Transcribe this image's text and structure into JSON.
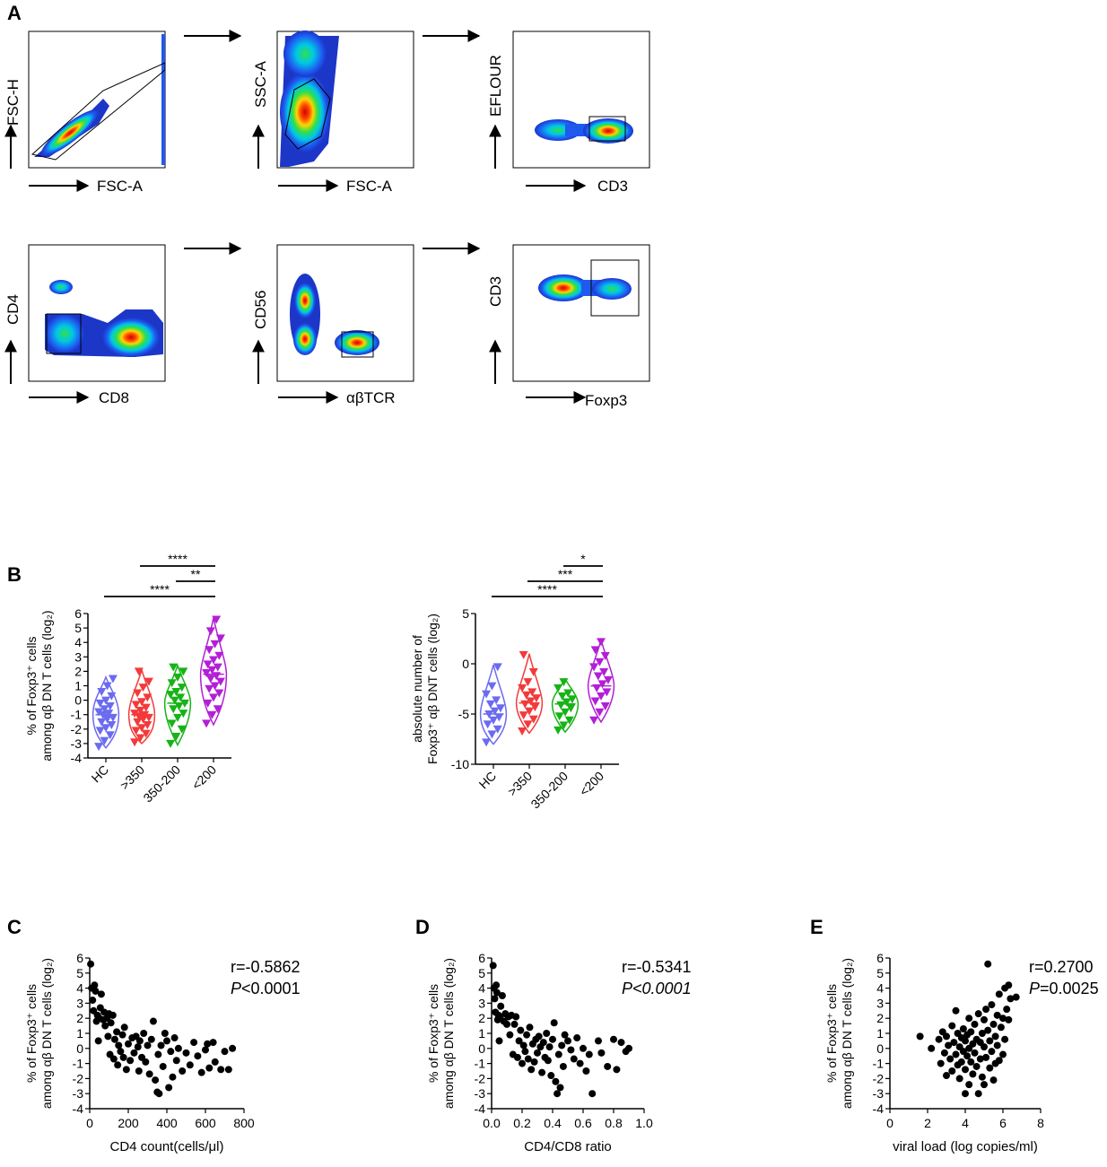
{
  "panel_labels": {
    "A": "A",
    "B": "B",
    "C": "C",
    "D": "D",
    "E": "E"
  },
  "flow": {
    "row1": [
      {
        "x": "FSC-A",
        "y": "FSC-H"
      },
      {
        "x": "FSC-A",
        "y": "SSC-A"
      },
      {
        "x": "CD3",
        "y": "EFLOUR"
      }
    ],
    "row2": [
      {
        "x": "CD8",
        "y": "CD4"
      },
      {
        "x": "αβTCR",
        "y": "CD56"
      },
      {
        "x": "Foxp3",
        "y": "CD3"
      }
    ]
  },
  "colors": {
    "HC": "#6b6bf0",
    "gt350": "#f23a3a",
    "r350_200": "#16b316",
    "lt200": "#b21fd6",
    "dots": "#000000"
  },
  "chart_data": [
    {
      "type": "violin",
      "panel": "B-left",
      "ylabel_line1": "% of Foxp3⁺ cells",
      "ylabel_line2": "among αβ DN T cells (log₂)",
      "categories": [
        "HC",
        ">350",
        "350-200",
        "<200"
      ],
      "ylim": [
        -4,
        6
      ],
      "yticks": [
        "-4",
        "-3",
        "-2",
        "-1",
        "0",
        "1",
        "2",
        "3",
        "4",
        "5",
        "6"
      ],
      "significance": [
        {
          "from": ">350",
          "to": "<200",
          "label": "****"
        },
        {
          "from": "350-200",
          "to": "<200",
          "label": "**"
        },
        {
          "from": "HC",
          "to": "<200",
          "label": "****"
        }
      ],
      "series": [
        {
          "name": "HC",
          "min": -3.3,
          "max": 1.6,
          "median": -1.0,
          "q1": -2.0,
          "q3": 0.0,
          "values": [
            -3.2,
            -2.8,
            -2.4,
            -2.1,
            -1.9,
            -1.7,
            -1.5,
            -1.3,
            -1.2,
            -1.0,
            -0.9,
            -0.8,
            -0.6,
            -0.4,
            -0.2,
            0.0,
            0.3,
            0.6,
            1.0,
            1.5
          ]
        },
        {
          "name": ">350",
          "min": -3.0,
          "max": 2.1,
          "median": -1.0,
          "q1": -2.0,
          "q3": -0.1,
          "values": [
            -2.9,
            -2.6,
            -2.3,
            -2.1,
            -1.9,
            -1.7,
            -1.5,
            -1.3,
            -1.2,
            -1.1,
            -1.0,
            -0.9,
            -0.7,
            -0.5,
            -0.3,
            -0.1,
            0.2,
            0.5,
            0.9,
            1.3,
            2.0
          ]
        },
        {
          "name": "350-200",
          "min": -3.1,
          "max": 2.4,
          "median": -0.2,
          "q1": -1.1,
          "q3": 0.5,
          "values": [
            -3.0,
            -2.5,
            -2.0,
            -1.6,
            -1.2,
            -0.9,
            -0.6,
            -0.4,
            -0.2,
            0.0,
            0.2,
            0.4,
            0.6,
            0.9,
            1.2,
            1.6,
            2.0,
            2.3
          ]
        },
        {
          "name": "<200",
          "min": -1.7,
          "max": 5.7,
          "median": 1.8,
          "q1": 0.4,
          "q3": 2.6,
          "values": [
            -1.6,
            -1.0,
            -0.6,
            -0.2,
            0.2,
            0.5,
            0.8,
            1.0,
            1.3,
            1.5,
            1.7,
            1.9,
            2.1,
            2.3,
            2.5,
            2.8,
            3.1,
            3.5,
            3.9,
            4.3,
            4.8,
            5.6
          ]
        }
      ]
    },
    {
      "type": "violin",
      "panel": "B-right",
      "ylabel_line1": "absolute number of",
      "ylabel_line2": "Foxp3⁺ αβ DNT cells (log₂)",
      "categories": [
        "HC",
        ">350",
        "350-200",
        "<200"
      ],
      "ylim": [
        -10,
        5
      ],
      "yticks": [
        "-10",
        "-5",
        "0",
        "5"
      ],
      "significance": [
        {
          "from": "350-200",
          "to": "<200",
          "label": "*"
        },
        {
          "from": ">350",
          "to": "<200",
          "label": "***"
        },
        {
          "from": "HC",
          "to": "<200",
          "label": "****"
        }
      ],
      "series": [
        {
          "name": "HC",
          "min": -8.0,
          "max": -0.1,
          "median": -5.0,
          "q1": -6.2,
          "q3": -3.8,
          "values": [
            -7.8,
            -7.0,
            -6.5,
            -6.0,
            -5.6,
            -5.3,
            -5.0,
            -4.7,
            -4.4,
            -4.0,
            -3.6,
            -3.0,
            -2.2,
            -0.3
          ]
        },
        {
          "name": ">350",
          "min": -6.9,
          "max": 1.0,
          "median": -3.9,
          "q1": -5.0,
          "q3": -2.9,
          "values": [
            -6.7,
            -6.0,
            -5.5,
            -5.1,
            -4.7,
            -4.3,
            -4.0,
            -3.7,
            -3.4,
            -3.1,
            -2.8,
            -2.4,
            -1.8,
            -0.8,
            0.9
          ]
        },
        {
          "name": "350-200",
          "min": -6.8,
          "max": -1.5,
          "median": -4.0,
          "q1": -5.0,
          "q3": -3.2,
          "values": [
            -6.6,
            -6.1,
            -5.6,
            -5.2,
            -4.8,
            -4.4,
            -4.1,
            -3.8,
            -3.5,
            -3.2,
            -2.9,
            -2.4,
            -1.8
          ]
        },
        {
          "name": "<200",
          "min": -5.8,
          "max": 2.4,
          "median": -2.2,
          "q1": -3.4,
          "q3": -1.1,
          "values": [
            -5.6,
            -4.8,
            -4.2,
            -3.7,
            -3.2,
            -2.8,
            -2.4,
            -2.0,
            -1.6,
            -1.2,
            -0.8,
            -0.3,
            0.2,
            0.8,
            1.4,
            2.2
          ]
        }
      ]
    },
    {
      "type": "scatter",
      "panel": "C",
      "xlabel": "CD4 count(cells/μl)",
      "ylabel_line1": "% of Foxp3⁺ cells",
      "ylabel_line2": "among αβ DN T cells (log₂)",
      "xlim": [
        0,
        800
      ],
      "xticks": [
        "0",
        "200",
        "400",
        "600",
        "800"
      ],
      "ylim": [
        -4,
        6
      ],
      "yticks": [
        "-4",
        "-3",
        "-2",
        "-1",
        "0",
        "1",
        "2",
        "3",
        "4",
        "5",
        "6"
      ],
      "stat_r": "r=-0.5862",
      "stat_p_label": "P",
      "stat_p_value": "<0.0001",
      "points": [
        [
          5,
          5.6
        ],
        [
          10,
          4.0
        ],
        [
          15,
          3.2
        ],
        [
          20,
          2.5
        ],
        [
          25,
          4.2
        ],
        [
          30,
          3.8
        ],
        [
          35,
          1.8
        ],
        [
          40,
          2.2
        ],
        [
          45,
          0.5
        ],
        [
          50,
          2.0
        ],
        [
          55,
          2.7
        ],
        [
          60,
          3.6
        ],
        [
          70,
          1.9
        ],
        [
          75,
          2.4
        ],
        [
          80,
          1.5
        ],
        [
          90,
          2.0
        ],
        [
          95,
          0.8
        ],
        [
          100,
          2.3
        ],
        [
          105,
          -0.4
        ],
        [
          110,
          1.7
        ],
        [
          120,
          2.2
        ],
        [
          125,
          -0.7
        ],
        [
          130,
          0.6
        ],
        [
          140,
          1.1
        ],
        [
          145,
          -1.1
        ],
        [
          150,
          0.2
        ],
        [
          160,
          -0.2
        ],
        [
          170,
          0.9
        ],
        [
          175,
          -0.6
        ],
        [
          180,
          1.4
        ],
        [
          190,
          -1.4
        ],
        [
          200,
          0.3
        ],
        [
          210,
          -0.8
        ],
        [
          220,
          0.7
        ],
        [
          230,
          -0.3
        ],
        [
          240,
          0.8
        ],
        [
          250,
          0.1
        ],
        [
          255,
          -1.5
        ],
        [
          260,
          0.5
        ],
        [
          270,
          -0.6
        ],
        [
          280,
          1.0
        ],
        [
          290,
          -0.9
        ],
        [
          300,
          0.2
        ],
        [
          310,
          -1.7
        ],
        [
          320,
          0.6
        ],
        [
          330,
          1.8
        ],
        [
          340,
          -2.1
        ],
        [
          350,
          -2.9
        ],
        [
          355,
          -0.4
        ],
        [
          360,
          -3.0
        ],
        [
          370,
          0.2
        ],
        [
          380,
          -1.2
        ],
        [
          390,
          1.0
        ],
        [
          400,
          0.5
        ],
        [
          410,
          -2.6
        ],
        [
          420,
          -0.2
        ],
        [
          430,
          -1.9
        ],
        [
          440,
          0.7
        ],
        [
          450,
          -0.8
        ],
        [
          460,
          0.0
        ],
        [
          480,
          -1.5
        ],
        [
          500,
          -0.3
        ],
        [
          520,
          -1.1
        ],
        [
          540,
          0.4
        ],
        [
          560,
          -0.5
        ],
        [
          580,
          -1.6
        ],
        [
          600,
          -0.1
        ],
        [
          610,
          0.3
        ],
        [
          620,
          -1.3
        ],
        [
          640,
          0.4
        ],
        [
          650,
          -0.9
        ],
        [
          680,
          -1.4
        ],
        [
          700,
          -0.2
        ],
        [
          720,
          -1.4
        ],
        [
          740,
          0.0
        ]
      ]
    },
    {
      "type": "scatter",
      "panel": "D",
      "xlabel": "CD4/CD8 ratio",
      "ylabel_line1": "% of Foxp3⁺ cells",
      "ylabel_line2": "among αβ DN T cells (log₂)",
      "xlim": [
        0,
        1.0
      ],
      "xticks": [
        "0.0",
        "0.2",
        "0.4",
        "0.6",
        "0.8",
        "1.0"
      ],
      "ylim": [
        -4,
        6
      ],
      "yticks": [
        "-4",
        "-3",
        "-2",
        "-1",
        "0",
        "1",
        "2",
        "3",
        "4",
        "5",
        "6"
      ],
      "stat_r": "r=-0.5341",
      "stat_p_label": "P",
      "stat_p_value": "<0.0001",
      "points": [
        [
          0.01,
          5.5
        ],
        [
          0.015,
          4.0
        ],
        [
          0.02,
          3.3
        ],
        [
          0.025,
          2.4
        ],
        [
          0.03,
          4.2
        ],
        [
          0.035,
          3.7
        ],
        [
          0.04,
          1.9
        ],
        [
          0.045,
          2.2
        ],
        [
          0.05,
          0.5
        ],
        [
          0.055,
          2.1
        ],
        [
          0.06,
          2.8
        ],
        [
          0.07,
          3.5
        ],
        [
          0.08,
          1.8
        ],
        [
          0.09,
          2.3
        ],
        [
          0.1,
          1.6
        ],
        [
          0.11,
          2.1
        ],
        [
          0.12,
          0.9
        ],
        [
          0.13,
          2.2
        ],
        [
          0.14,
          -0.4
        ],
        [
          0.15,
          1.6
        ],
        [
          0.16,
          2.1
        ],
        [
          0.17,
          -0.6
        ],
        [
          0.18,
          0.5
        ],
        [
          0.19,
          1.2
        ],
        [
          0.2,
          -1.0
        ],
        [
          0.21,
          0.2
        ],
        [
          0.22,
          -0.2
        ],
        [
          0.23,
          0.9
        ],
        [
          0.24,
          -0.7
        ],
        [
          0.25,
          1.4
        ],
        [
          0.26,
          -1.4
        ],
        [
          0.27,
          0.3
        ],
        [
          0.28,
          -0.9
        ],
        [
          0.29,
          0.6
        ],
        [
          0.3,
          -0.3
        ],
        [
          0.31,
          0.8
        ],
        [
          0.32,
          0.1
        ],
        [
          0.33,
          -1.6
        ],
        [
          0.34,
          0.4
        ],
        [
          0.35,
          -0.6
        ],
        [
          0.36,
          1.0
        ],
        [
          0.37,
          -0.8
        ],
        [
          0.38,
          0.1
        ],
        [
          0.39,
          -1.8
        ],
        [
          0.4,
          0.6
        ],
        [
          0.41,
          1.7
        ],
        [
          0.42,
          -2.2
        ],
        [
          0.43,
          -3.0
        ],
        [
          0.44,
          -0.4
        ],
        [
          0.45,
          -2.6
        ],
        [
          0.46,
          0.2
        ],
        [
          0.47,
          -1.2
        ],
        [
          0.48,
          0.9
        ],
        [
          0.5,
          0.5
        ],
        [
          0.52,
          -0.1
        ],
        [
          0.54,
          -0.7
        ],
        [
          0.56,
          0.7
        ],
        [
          0.58,
          -1.0
        ],
        [
          0.6,
          0.0
        ],
        [
          0.62,
          -1.5
        ],
        [
          0.64,
          -0.4
        ],
        [
          0.66,
          -3.0
        ],
        [
          0.7,
          0.5
        ],
        [
          0.72,
          -0.3
        ],
        [
          0.76,
          -1.2
        ],
        [
          0.8,
          0.6
        ],
        [
          0.82,
          -1.4
        ],
        [
          0.85,
          0.4
        ],
        [
          0.88,
          -0.2
        ],
        [
          0.9,
          0.0
        ]
      ]
    },
    {
      "type": "scatter",
      "panel": "E",
      "xlabel": "viral load (log copies/ml)",
      "ylabel_line1": "% of Foxp3⁺ cells",
      "ylabel_line2": "among αβ DN T cells (log₂)",
      "xlim": [
        0,
        8
      ],
      "xticks": [
        "0",
        "2",
        "4",
        "6",
        "8"
      ],
      "ylim": [
        -4,
        6
      ],
      "yticks": [
        "-4",
        "-3",
        "-2",
        "-1",
        "0",
        "1",
        "2",
        "3",
        "4",
        "5",
        "6"
      ],
      "stat_r": "r=0.2700",
      "stat_p_label": "P",
      "stat_p_value": "=0.0025",
      "points": [
        [
          1.6,
          0.8
        ],
        [
          2.2,
          0.0
        ],
        [
          2.6,
          0.6
        ],
        [
          2.7,
          -1.0
        ],
        [
          2.8,
          1.1
        ],
        [
          2.9,
          -0.3
        ],
        [
          3.0,
          0.8
        ],
        [
          3.0,
          -1.8
        ],
        [
          3.1,
          0.2
        ],
        [
          3.2,
          -0.7
        ],
        [
          3.3,
          1.5
        ],
        [
          3.3,
          -1.5
        ],
        [
          3.4,
          0.4
        ],
        [
          3.5,
          -0.4
        ],
        [
          3.5,
          2.5
        ],
        [
          3.6,
          1.0
        ],
        [
          3.6,
          -1.1
        ],
        [
          3.7,
          0.1
        ],
        [
          3.7,
          -2.0
        ],
        [
          3.8,
          0.7
        ],
        [
          3.8,
          -0.9
        ],
        [
          3.9,
          1.3
        ],
        [
          3.9,
          -0.2
        ],
        [
          4.0,
          0.5
        ],
        [
          4.0,
          -1.4
        ],
        [
          4.0,
          -3.0
        ],
        [
          4.1,
          0.9
        ],
        [
          4.1,
          -0.5
        ],
        [
          4.2,
          2.0
        ],
        [
          4.2,
          0.0
        ],
        [
          4.2,
          -2.4
        ],
        [
          4.3,
          1.1
        ],
        [
          4.3,
          -0.9
        ],
        [
          4.4,
          0.3
        ],
        [
          4.4,
          -1.7
        ],
        [
          4.5,
          1.6
        ],
        [
          4.5,
          -0.3
        ],
        [
          4.6,
          0.6
        ],
        [
          4.6,
          -1.2
        ],
        [
          4.7,
          2.3
        ],
        [
          4.7,
          -3.0
        ],
        [
          4.8,
          0.4
        ],
        [
          4.8,
          -0.7
        ],
        [
          4.9,
          1.0
        ],
        [
          4.9,
          -1.9
        ],
        [
          5.0,
          1.9
        ],
        [
          5.0,
          0.1
        ],
        [
          5.0,
          -2.4
        ],
        [
          5.1,
          2.6
        ],
        [
          5.1,
          -0.6
        ],
        [
          5.2,
          5.6
        ],
        [
          5.2,
          1.2
        ],
        [
          5.3,
          0.5
        ],
        [
          5.3,
          -1.3
        ],
        [
          5.4,
          2.9
        ],
        [
          5.4,
          -0.2
        ],
        [
          5.5,
          1.6
        ],
        [
          5.5,
          -2.1
        ],
        [
          5.6,
          0.8
        ],
        [
          5.6,
          -1.0
        ],
        [
          5.7,
          2.2
        ],
        [
          5.7,
          0.2
        ],
        [
          5.8,
          3.6
        ],
        [
          5.8,
          -0.8
        ],
        [
          5.9,
          1.4
        ],
        [
          6.0,
          2.0
        ],
        [
          6.0,
          -0.4
        ],
        [
          6.1,
          4.0
        ],
        [
          6.1,
          0.6
        ],
        [
          6.2,
          2.6
        ],
        [
          6.3,
          4.2
        ],
        [
          6.3,
          1.9
        ],
        [
          6.4,
          3.3
        ],
        [
          6.7,
          3.4
        ]
      ]
    }
  ]
}
